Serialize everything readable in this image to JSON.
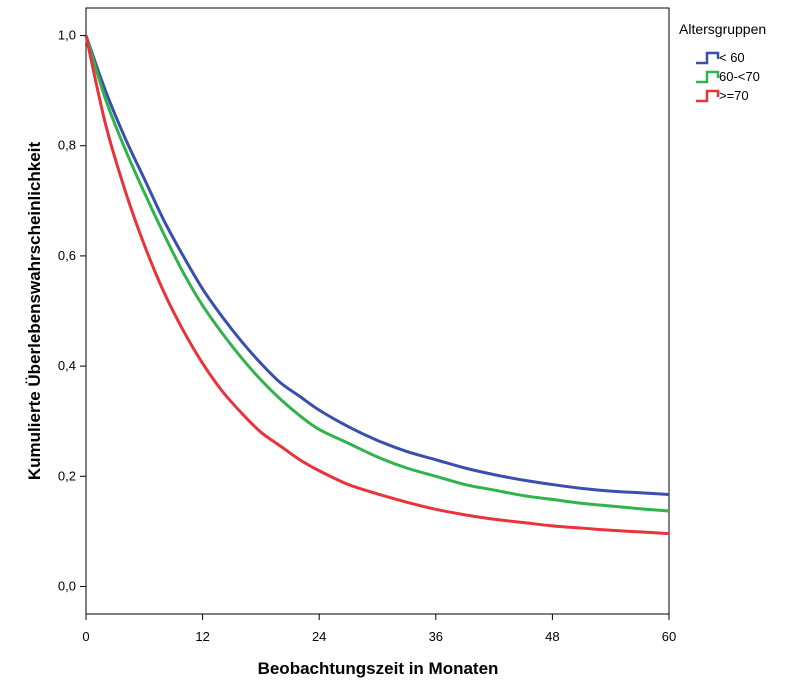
{
  "chart_data": {
    "type": "line",
    "xlabel": "Beobachtungszeit in Monaten",
    "ylabel": "Kumulierte Überlebenswahrscheinlichkeit",
    "xlim": [
      0,
      60
    ],
    "ylim": [
      -0.05,
      1.05
    ],
    "xticks": [
      0,
      12,
      24,
      36,
      48,
      60
    ],
    "xtick_labels": [
      "0",
      "12",
      "24",
      "36",
      "48",
      "60"
    ],
    "yticks": [
      0.0,
      0.2,
      0.4,
      0.6,
      0.8,
      1.0
    ],
    "ytick_labels": [
      "0,0",
      "0,2",
      "0,4",
      "0,6",
      "0,8",
      "1,0"
    ],
    "grid": false,
    "legend": {
      "title": "Altersgruppen",
      "position": "top-right-outside"
    },
    "series": [
      {
        "name": "< 60",
        "color": "#3a4fad",
        "x": [
          0,
          2,
          4,
          6,
          8,
          10,
          12,
          14,
          16,
          18,
          20,
          22,
          24,
          27,
          30,
          33,
          36,
          39,
          42,
          45,
          48,
          51,
          54,
          57,
          60
        ],
        "y": [
          1.0,
          0.9,
          0.815,
          0.74,
          0.665,
          0.6,
          0.54,
          0.49,
          0.445,
          0.405,
          0.37,
          0.345,
          0.32,
          0.29,
          0.265,
          0.245,
          0.23,
          0.215,
          0.203,
          0.193,
          0.185,
          0.178,
          0.173,
          0.17,
          0.167
        ]
      },
      {
        "name": "60-<70",
        "color": "#2fb34a",
        "x": [
          0,
          2,
          4,
          6,
          8,
          10,
          12,
          14,
          16,
          18,
          20,
          22,
          24,
          27,
          30,
          33,
          36,
          39,
          42,
          45,
          48,
          51,
          54,
          57,
          60
        ],
        "y": [
          1.0,
          0.885,
          0.795,
          0.715,
          0.64,
          0.57,
          0.51,
          0.46,
          0.415,
          0.375,
          0.34,
          0.31,
          0.285,
          0.26,
          0.235,
          0.215,
          0.2,
          0.185,
          0.175,
          0.165,
          0.158,
          0.151,
          0.146,
          0.141,
          0.137
        ]
      },
      {
        "name": ">=70",
        "color": "#e8333b",
        "x": [
          0,
          2,
          4,
          6,
          8,
          10,
          12,
          14,
          16,
          18,
          20,
          22,
          24,
          27,
          30,
          33,
          36,
          39,
          42,
          45,
          48,
          51,
          54,
          57,
          60
        ],
        "y": [
          1.0,
          0.84,
          0.72,
          0.62,
          0.535,
          0.465,
          0.405,
          0.355,
          0.315,
          0.28,
          0.255,
          0.23,
          0.21,
          0.185,
          0.168,
          0.153,
          0.14,
          0.13,
          0.122,
          0.116,
          0.11,
          0.106,
          0.102,
          0.099,
          0.096
        ]
      }
    ]
  }
}
